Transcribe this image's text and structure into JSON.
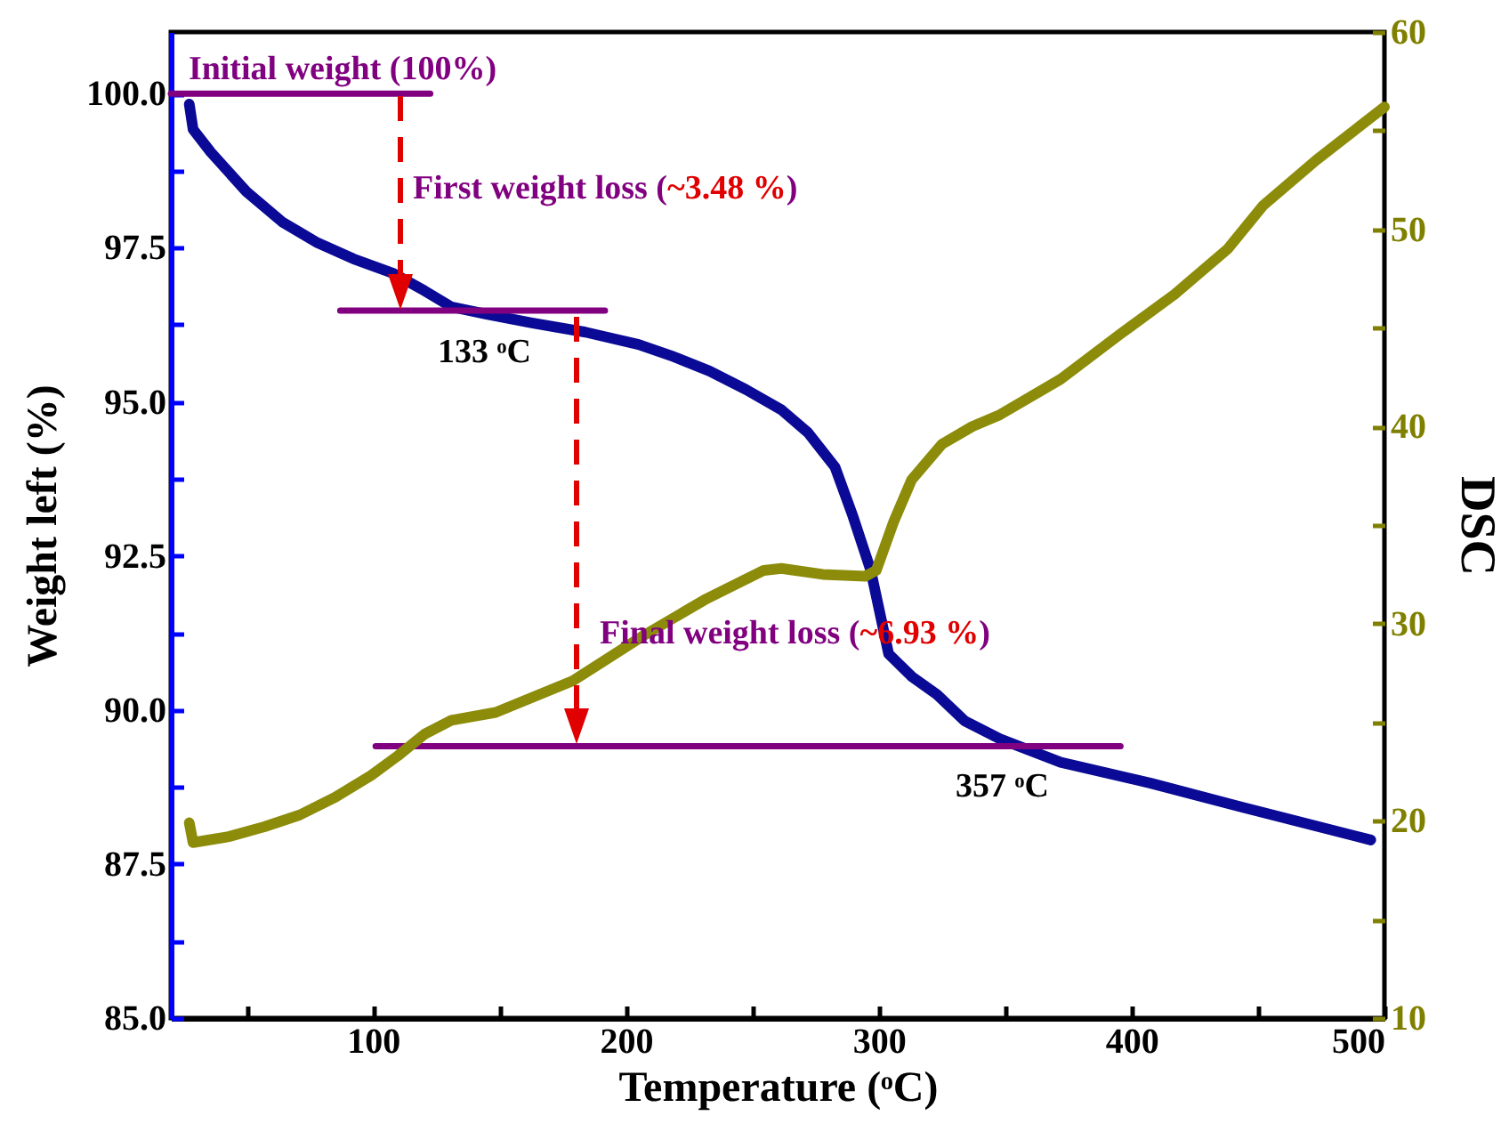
{
  "chart_data": {
    "type": "line",
    "xlabel": "Temperature (ᵒC)",
    "ylabel": "Weight left (%)",
    "y2label": "DSC",
    "xlim": [
      20,
      500
    ],
    "ylim": [
      85,
      101
    ],
    "y2lim": [
      10,
      60
    ],
    "xticks": [
      {
        "value": 50,
        "label": null
      },
      100,
      {
        "value": 150,
        "label": null
      },
      200,
      {
        "value": 250,
        "label": null
      },
      300,
      {
        "value": 350,
        "label": null
      },
      400,
      {
        "value": 450,
        "label": null
      },
      500
    ],
    "yticks": [
      {
        "value": 85,
        "label": "85.0"
      },
      {
        "value": 86.25,
        "label": null
      },
      {
        "value": 87.5,
        "label": "87.5"
      },
      {
        "value": 88.75,
        "label": null
      },
      {
        "value": 90,
        "label": "90.0"
      },
      {
        "value": 91.25,
        "label": null
      },
      {
        "value": 92.5,
        "label": "92.5"
      },
      {
        "value": 93.75,
        "label": null
      },
      {
        "value": 95,
        "label": "95.0"
      },
      {
        "value": 96.25,
        "label": null
      },
      {
        "value": 97.5,
        "label": "97.5"
      },
      {
        "value": 98.75,
        "label": null
      },
      {
        "value": 100,
        "label": "100.0"
      }
    ],
    "y2ticks": [
      10,
      {
        "value": 15,
        "label": null
      },
      20,
      {
        "value": 25,
        "label": null
      },
      30,
      {
        "value": 35,
        "label": null
      },
      40,
      {
        "value": 45,
        "label": null
      },
      50,
      {
        "value": 55,
        "label": null
      },
      60
    ],
    "grid": false,
    "series": [
      {
        "color": "#0a0a96",
        "x": [
          27.3,
          28.8,
          35.8,
          49.9,
          64,
          78,
          92.2,
          107.7,
          120.4,
          131,
          145,
          162.8,
          184,
          205,
          219,
          233,
          247.4,
          261.5,
          272,
          282.7,
          289.8,
          296.8,
          303.9,
          313.1,
          323,
          334,
          348,
          372,
          407.6,
          443,
          494.6
        ],
        "values": [
          99.83,
          99.42,
          99.05,
          98.41,
          97.92,
          97.58,
          97.32,
          97.09,
          96.8,
          96.54,
          96.42,
          96.28,
          96.13,
          95.93,
          95.73,
          95.5,
          95.2,
          94.87,
          94.5,
          93.94,
          93.14,
          92.27,
          90.91,
          90.54,
          90.25,
          89.82,
          89.53,
          89.15,
          88.81,
          88.43,
          87.89
        ]
      },
      {
        "color": "#8c8c0a",
        "axis": "y2",
        "x": [
          27.3,
          28.8,
          42.9,
          57,
          71,
          85,
          99.2,
          109.8,
          120.4,
          131,
          148.5,
          179,
          207,
          231,
          254.5,
          261.5,
          277.8,
          294.6,
          299,
          306,
          313,
          325,
          337,
          348,
          372,
          395.7,
          417,
          438,
          452,
          473,
          500
        ],
        "values": [
          19.9,
          18.9,
          19.2,
          19.7,
          20.3,
          21.2,
          22.3,
          23.3,
          24.4,
          25.1,
          25.5,
          27.1,
          29.4,
          31.2,
          32.7,
          32.8,
          32.5,
          32.4,
          32.7,
          35.2,
          37.3,
          39.1,
          40,
          40.6,
          42.4,
          44.7,
          46.7,
          49,
          51.2,
          53.5,
          56.2
        ]
      },
      {
        "color": "#800080",
        "x": [
          20,
          122.6
        ],
        "values": [
          100,
          100
        ]
      },
      {
        "color": "#800080",
        "x": [
          87,
          191.7
        ],
        "values": [
          96.48,
          96.48
        ]
      },
      {
        "color": "#800080",
        "x": [
          101,
          395.6
        ],
        "values": [
          89.41,
          89.41
        ]
      }
    ],
    "annotations": [
      {
        "text": "Initial weight (100%)",
        "x": 27,
        "y": 100
      },
      "First weight loss (~3.48 %)",
      "133 ᵒC",
      "Final weight loss (~6.93 %)",
      "357 ᵒC"
    ]
  }
}
